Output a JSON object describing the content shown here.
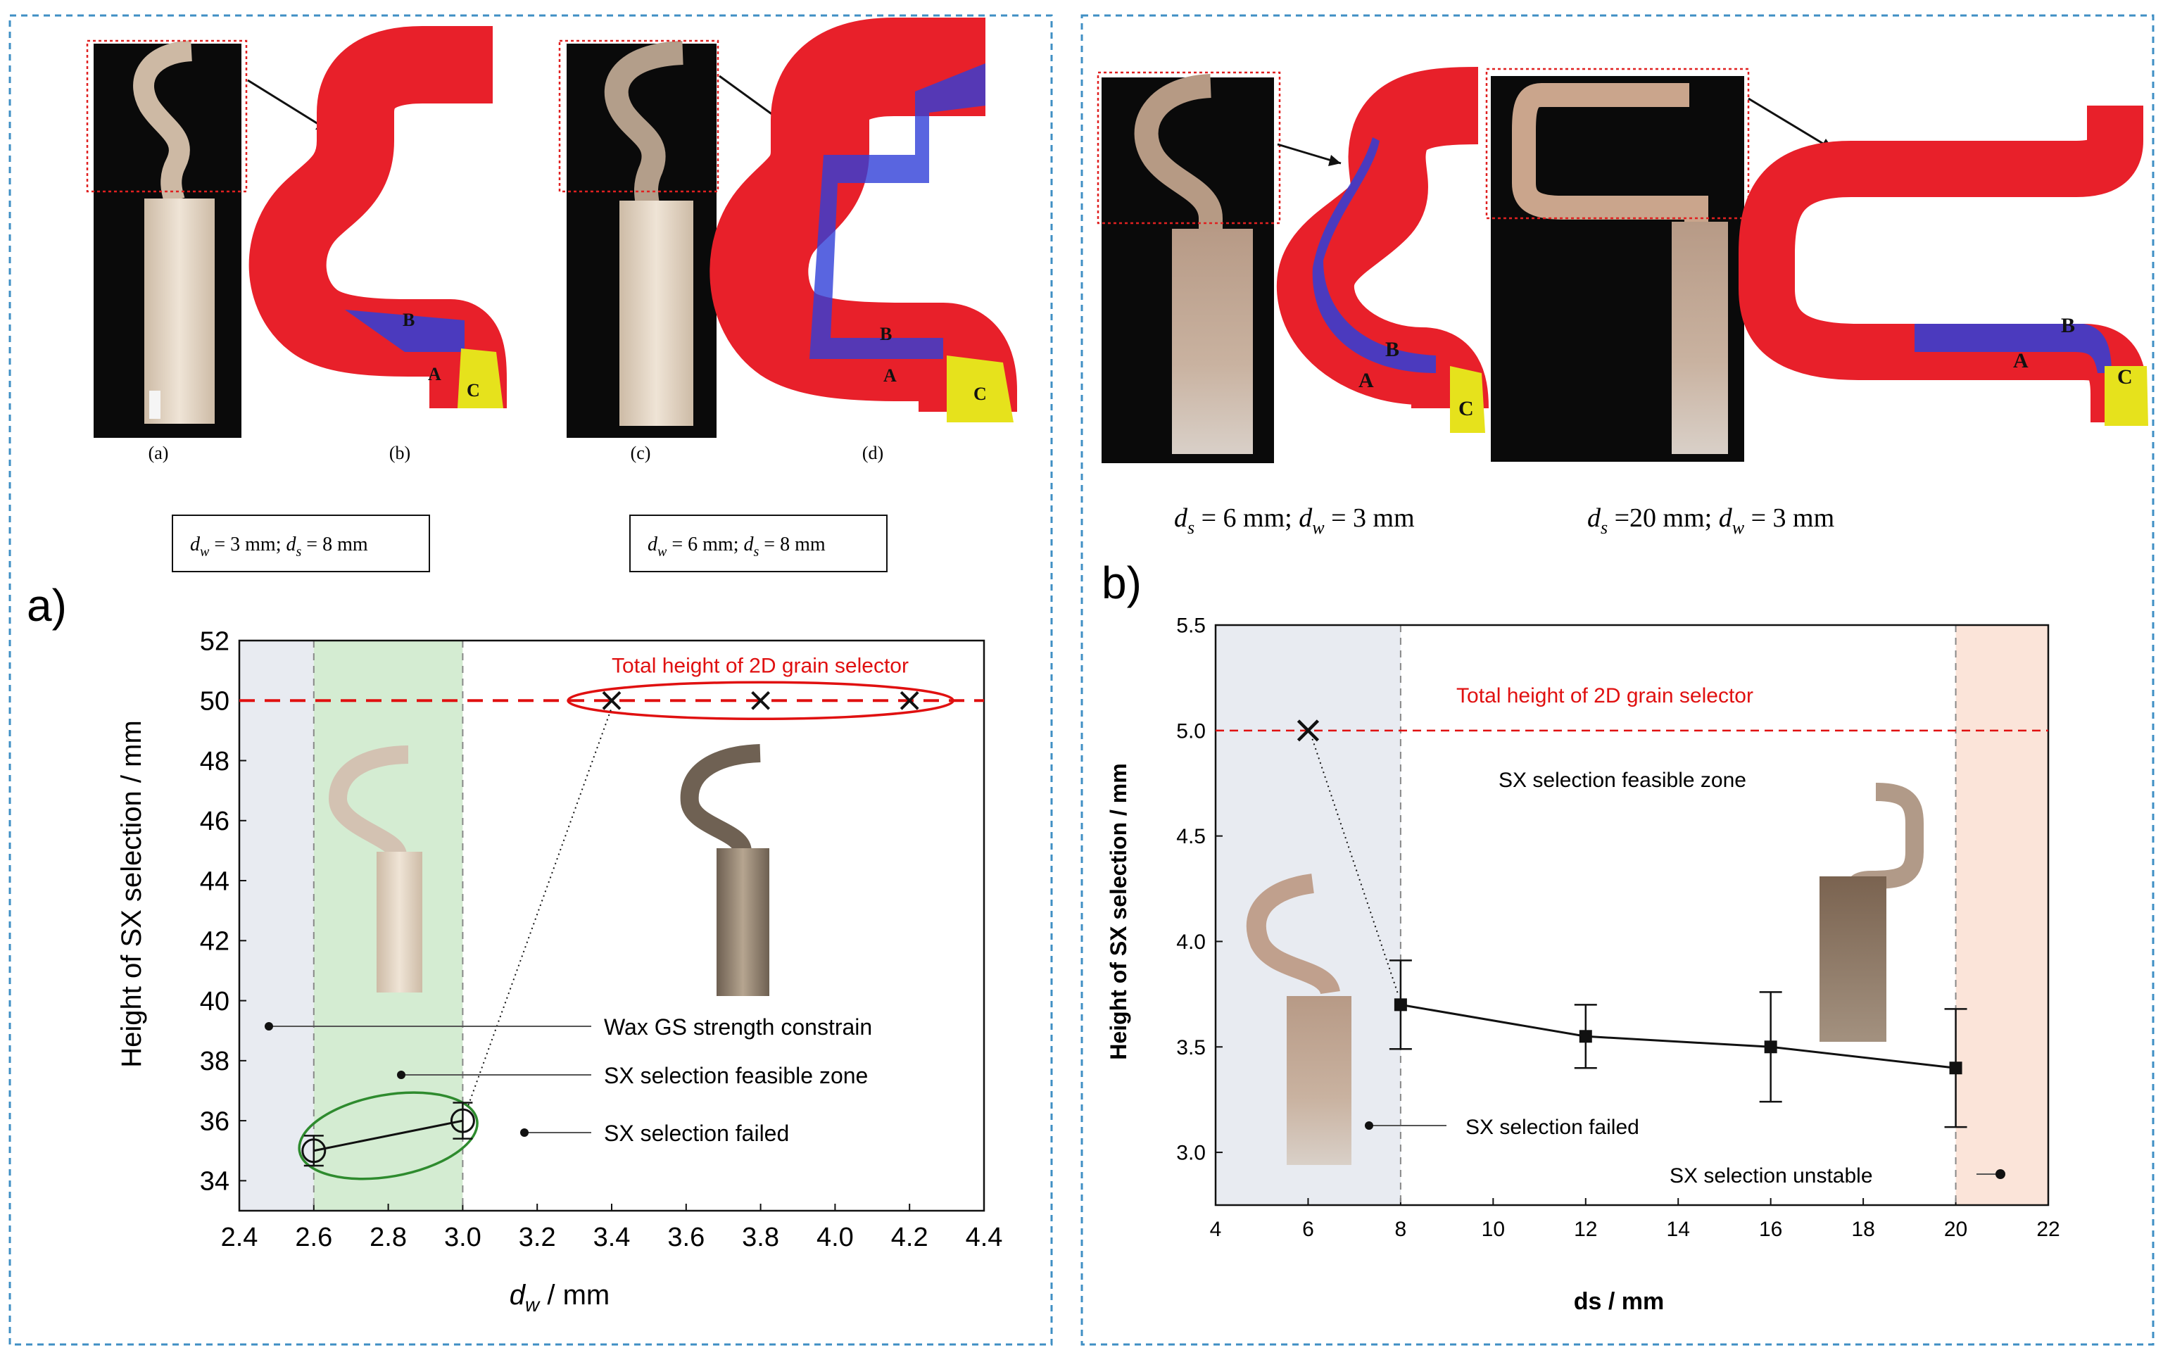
{
  "colors": {
    "frame": "#3f8fc4",
    "red_line": "#e01010",
    "zone_grey": "#e8ebf1",
    "zone_green": "#d4ecd2",
    "zone_peach": "#fbe4d9",
    "ellipse_red": "#e01010",
    "ellipse_green": "#2e8b2e",
    "sim_red": "#e8202a",
    "sim_blue": "#2f3fd8",
    "sim_yellow": "#e6e21c",
    "photo_bg": "#0a0a0a",
    "wax": "#d8c9b8",
    "metal": "#8a7a68",
    "crop_box": "#e02020"
  },
  "left": {
    "panel_label": "a)",
    "top_sublabels": [
      "(a)",
      "(b)",
      "(c)",
      "(d)"
    ],
    "zone_letters": [
      "A",
      "B",
      "C"
    ],
    "caption_1": {
      "p1": "d",
      "s1": "w",
      "p2": " = 3 mm; ",
      "p3": "d",
      "s2": "s",
      "p4": " = 8 mm"
    },
    "caption_2": {
      "p1": "d",
      "s1": "w",
      "p2": " = 6 mm; ",
      "p3": "d",
      "s2": "s",
      "p4": " = 8 mm"
    },
    "xlabel_main": "d",
    "xlabel_sub": "w",
    "xlabel_rest": " / mm",
    "ylabel": "Height of SX selection / mm",
    "ref_line_label": "Total height of 2D grain selector",
    "legend": [
      "Wax GS strength constrain",
      "SX selection feasible zone",
      "SX selection failed"
    ]
  },
  "right": {
    "panel_label": "b)",
    "zone_letters": [
      "A",
      "B",
      "C"
    ],
    "caption_1": {
      "p1": "d",
      "s1": "s",
      "p2": " = 6 mm; ",
      "p3": "d",
      "s2": "w",
      "p4": " = 3 mm"
    },
    "caption_2": {
      "p1": "d",
      "s1": "s",
      "p2": " =20 mm; ",
      "p3": "d",
      "s2": "w",
      "p4": " = 3 mm"
    },
    "xlabel": "ds / mm",
    "ylabel": "Height of SX selection / mm",
    "ref_line_label": "Total height of 2D grain selector",
    "zone_label": "SX selection feasible zone",
    "legend_failed": "SX selection failed",
    "legend_unstable": "SX selection unstable"
  },
  "chart_data": [
    {
      "type": "scatter",
      "xlabel": "dw / mm",
      "ylabel": "Height of SX selection / mm",
      "xlim": [
        2.4,
        4.4
      ],
      "ylim": [
        33,
        52
      ],
      "xticks": [
        2.4,
        2.6,
        2.8,
        3.0,
        3.2,
        3.4,
        3.6,
        3.8,
        4.0,
        4.2,
        4.4
      ],
      "yticks": [
        34,
        36,
        38,
        40,
        42,
        44,
        46,
        48,
        50,
        52
      ],
      "reference_line": {
        "y": 50,
        "label": "Total height of 2D grain selector"
      },
      "zones": [
        {
          "from": 2.4,
          "to": 2.6,
          "label": "Wax GS strength constrain"
        },
        {
          "from": 2.6,
          "to": 3.0,
          "label": "SX selection feasible zone"
        }
      ],
      "series": [
        {
          "marker": "circle",
          "x": [
            2.6,
            3.0
          ],
          "y": [
            35,
            36
          ],
          "err": [
            0.5,
            0.6
          ]
        },
        {
          "marker": "cross",
          "x": [
            3.4,
            3.8,
            4.2
          ],
          "y": [
            50,
            50,
            50
          ]
        }
      ]
    },
    {
      "type": "line",
      "xlabel": "ds / mm",
      "ylabel": "Height of SX selection / mm",
      "xlim": [
        4,
        22
      ],
      "ylim": [
        2.75,
        5.5
      ],
      "xticks": [
        4,
        6,
        8,
        10,
        12,
        14,
        16,
        18,
        20,
        22
      ],
      "yticks": [
        3.0,
        3.5,
        4.0,
        4.5,
        5.0,
        5.5
      ],
      "reference_line": {
        "y": 5.0,
        "label": "Total height of 2D grain selector"
      },
      "zones": [
        {
          "from": 4,
          "to": 8,
          "label": "SX selection failed"
        },
        {
          "from": 8,
          "to": 20,
          "label": "SX selection feasible zone"
        },
        {
          "from": 20,
          "to": 22,
          "label": "SX selection unstable"
        }
      ],
      "series": [
        {
          "marker": "square",
          "x": [
            8,
            12,
            16,
            20
          ],
          "y": [
            3.7,
            3.55,
            3.5,
            3.4
          ],
          "err": [
            0.21,
            0.15,
            0.26,
            0.28
          ]
        },
        {
          "marker": "cross",
          "x": [
            6
          ],
          "y": [
            5.0
          ]
        }
      ]
    }
  ]
}
